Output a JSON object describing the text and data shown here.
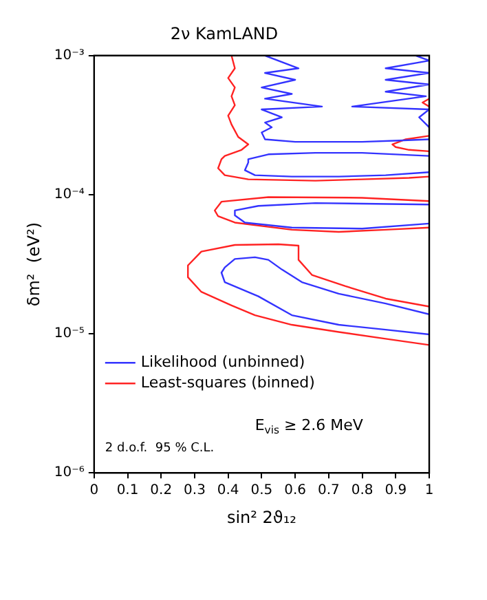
{
  "chart_data": {
    "type": "line",
    "title": "2ν KamLAND",
    "xlabel": "sin² 2ϑ₁₂",
    "ylabel": "δm²  (eV²)",
    "xlim": [
      0,
      1
    ],
    "xticks": [
      0,
      0.1,
      0.2,
      0.3,
      0.4,
      0.5,
      0.6,
      0.7,
      0.8,
      0.9,
      1
    ],
    "ylim": [
      1e-06,
      0.001
    ],
    "log": "y",
    "yticks": [
      {
        "value": 1e-06,
        "label": "10⁻⁶"
      },
      {
        "value": 1e-05,
        "label": "10⁻⁵"
      },
      {
        "value": 0.0001,
        "label": "10⁻⁴"
      },
      {
        "value": 0.001,
        "label": "10⁻³"
      }
    ],
    "grid": false,
    "legend": "bottom left",
    "annotations": [
      "E$_{vis}$ ≥ 2.6 MeV",
      "2 d.o.f.  95 % C.L."
    ],
    "series": [
      {
        "name": "Likelihood (unbinned)",
        "color": "#3333ff",
        "x": [
          0.51,
          0.61,
          0.51,
          0.6,
          0.5,
          0.59,
          0.51,
          0.68,
          0.5,
          0.56,
          0.51,
          0.53,
          0.5,
          0.51,
          0.6,
          0.8,
          0.91,
          1.0,
          null,
          0.96,
          1.0,
          0.87,
          1.0,
          0.87,
          1.0,
          0.87,
          0.99,
          0.77,
          1.0,
          0.97,
          1.0,
          null,
          1.0,
          0.8,
          0.66,
          0.52,
          0.46,
          0.46,
          0.45,
          0.48,
          0.59,
          0.73,
          0.87,
          1.0,
          null,
          1.0,
          0.66,
          0.49,
          0.42,
          0.42,
          0.45,
          0.59,
          0.8,
          1.0,
          null,
          1.0,
          0.87,
          0.73,
          0.62,
          0.56,
          0.52,
          0.48,
          0.42,
          0.39,
          0.38,
          0.39,
          0.49,
          0.59,
          0.73,
          0.87,
          1.0
        ],
        "values": [
          0.001,
          0.00081,
          0.00075,
          0.00067,
          0.00059,
          0.00053,
          0.00049,
          0.00043,
          0.00041,
          0.00036,
          0.00033,
          0.000305,
          0.00028,
          0.00025,
          0.00024,
          0.00024,
          0.000245,
          0.00025,
          null,
          0.001,
          0.00092,
          0.00081,
          0.00075,
          0.00067,
          0.00062,
          0.00055,
          0.00051,
          0.00043,
          0.00041,
          0.00036,
          0.000305,
          null,
          0.00019,
          0.0002,
          0.0002,
          0.000195,
          0.00018,
          0.00017,
          0.00015,
          0.000138,
          0.000135,
          0.000135,
          0.000138,
          0.000145,
          null,
          8.5e-05,
          8.7e-05,
          8.3e-05,
          7.7e-05,
          7.1e-05,
          6.3e-05,
          5.8e-05,
          5.7e-05,
          6.2e-05,
          null,
          1.38e-05,
          1.65e-05,
          1.94e-05,
          2.35e-05,
          2.9e-05,
          3.4e-05,
          3.55e-05,
          3.45e-05,
          3e-05,
          2.75e-05,
          2.35e-05,
          1.86e-05,
          1.36e-05,
          1.16e-05,
          1.07e-05,
          9.9e-06
        ]
      },
      {
        "name": "Least-squares (binned)",
        "color": "#ff2222",
        "x": [
          0.41,
          0.42,
          0.4,
          0.42,
          0.41,
          0.42,
          0.4,
          0.41,
          0.43,
          0.46,
          0.44,
          0.39,
          0.38,
          0.37,
          0.39,
          0.46,
          0.66,
          0.8,
          0.94,
          1.0,
          null,
          1.0,
          0.98,
          1.0,
          null,
          1.0,
          0.93,
          0.89,
          0.9,
          0.94,
          1.0,
          null,
          1.0,
          0.8,
          0.52,
          0.38,
          0.36,
          0.37,
          0.42,
          0.59,
          0.73,
          0.87,
          1.0,
          null,
          1.0,
          0.87,
          0.75,
          0.65,
          0.61,
          0.61,
          0.55,
          0.42,
          0.32,
          0.28,
          0.28,
          0.32,
          0.41,
          0.48,
          0.59,
          0.73,
          0.87,
          1.0
        ],
        "values": [
          0.001,
          0.00081,
          0.00069,
          0.00059,
          0.00051,
          0.00044,
          0.00037,
          0.00032,
          0.00026,
          0.00023,
          0.00021,
          0.00019,
          0.00018,
          0.000155,
          0.000138,
          0.000129,
          0.000126,
          0.000129,
          0.000132,
          0.000135,
          null,
          0.00049,
          0.00046,
          0.00043,
          null,
          0.000265,
          0.00025,
          0.00023,
          0.00022,
          0.00021,
          0.000205,
          null,
          9e-05,
          9.5e-05,
          9.6e-05,
          8.9e-05,
          7.7e-05,
          7e-05,
          6.3e-05,
          5.6e-05,
          5.4e-05,
          5.6e-05,
          5.8e-05,
          null,
          1.57e-05,
          1.79e-05,
          2.2e-05,
          2.65e-05,
          3.4e-05,
          4.3e-05,
          4.4e-05,
          4.35e-05,
          3.9e-05,
          3.1e-05,
          2.55e-05,
          2e-05,
          1.6e-05,
          1.36e-05,
          1.16e-05,
          1.03e-05,
          9.2e-06,
          8.3e-06
        ]
      }
    ]
  }
}
